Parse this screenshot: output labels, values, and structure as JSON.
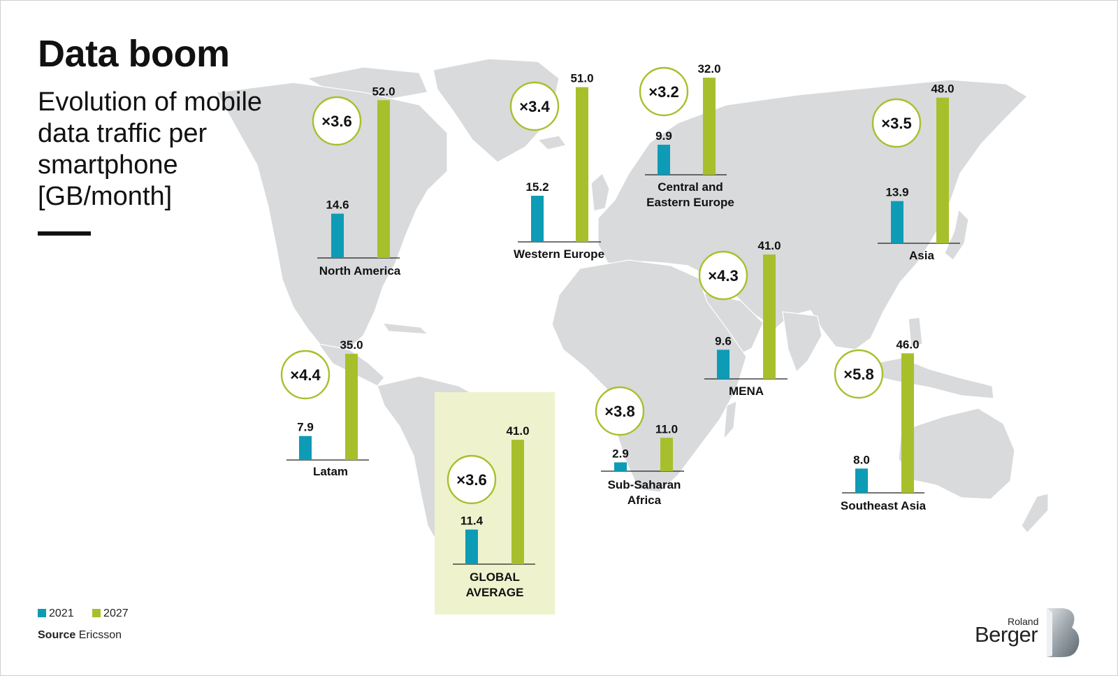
{
  "header": {
    "title": "Data boom",
    "subtitle": "Evolution of mobile data traffic per smartphone [GB/month]"
  },
  "legend": {
    "items": [
      {
        "label": "2021",
        "color": "#0e9bb5"
      },
      {
        "label": "2027",
        "color": "#a8bf2c"
      }
    ]
  },
  "source": {
    "label": "Source",
    "text": "Ericsson"
  },
  "logo": {
    "line1": "Roland",
    "line2": "Berger"
  },
  "chart_data": {
    "type": "bar",
    "categories": [
      "North America",
      "Western Europe",
      "Central and Eastern Europe",
      "Asia",
      "MENA",
      "Latam",
      "GLOBAL AVERAGE",
      "Sub-Saharan Africa",
      "Southeast Asia"
    ],
    "series": [
      {
        "name": "2021",
        "values": [
          14.6,
          15.2,
          9.9,
          13.9,
          9.6,
          7.9,
          11.4,
          2.9,
          8.0
        ]
      },
      {
        "name": "2027",
        "values": [
          52.0,
          51.0,
          32.0,
          48.0,
          41.0,
          35.0,
          41.0,
          11.0,
          46.0
        ]
      }
    ],
    "value_labels": {
      "2021": [
        "14.6",
        "15.2",
        "9.9",
        "13.9",
        "9.6",
        "7.9",
        "11.4",
        "2.9",
        "8.0"
      ],
      "2027": [
        "52.0",
        "51.0",
        "32.0",
        "48.0",
        "41.0",
        "35.0",
        "41.0",
        "11.0",
        "46.0"
      ]
    },
    "multipliers": [
      "×3.6",
      "×3.4",
      "×3.2",
      "×3.5",
      "×4.3",
      "×4.4",
      "×3.6",
      "×3.8",
      "×5.8"
    ],
    "region_labels": [
      [
        "North America"
      ],
      [
        "Western Europe"
      ],
      [
        "Central and",
        "Eastern Europe"
      ],
      [
        "Asia"
      ],
      [
        "MENA"
      ],
      [
        "Latam"
      ],
      [
        "GLOBAL",
        "AVERAGE"
      ],
      [
        "Sub-Saharan",
        "Africa"
      ],
      [
        "Southeast Asia"
      ]
    ],
    "highlight": "GLOBAL AVERAGE",
    "colors": {
      "2021": "#0e9bb5",
      "2027": "#a8bf2c",
      "map": "#d8dadc",
      "highlight_box": "#eef3cd"
    }
  }
}
